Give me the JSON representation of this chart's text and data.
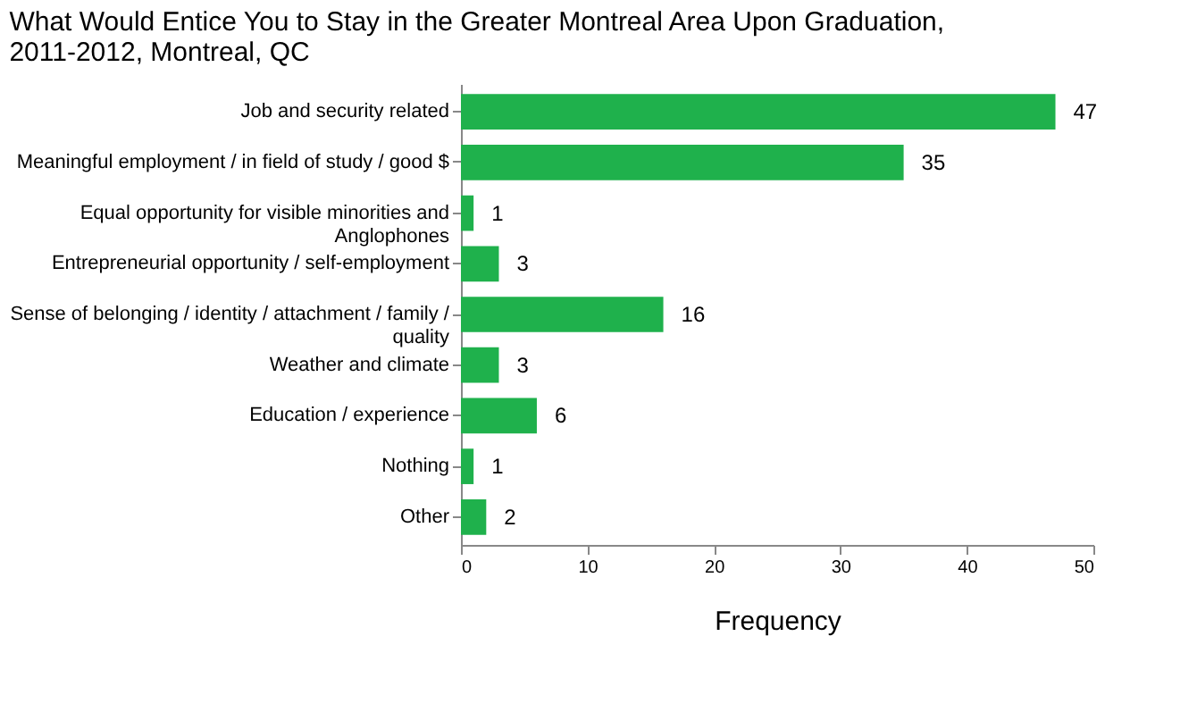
{
  "chart_data": {
    "type": "bar",
    "orientation": "horizontal",
    "title": "What Would Entice You to Stay in the Greater Montreal Area Upon Graduation,\n2011-2012, Montreal, QC",
    "xlabel": "Frequency",
    "categories": [
      "Job and security related",
      "Meaningful employment / in field of study / good $",
      "Equal opportunity for visible minorities and\nAnglophones",
      "Entrepreneurial opportunity / self-employment",
      "Sense of belonging / identity / attachment / family /\nquality",
      "Weather and climate",
      "Education / experience",
      "Nothing",
      "Other"
    ],
    "values": [
      47,
      35,
      1,
      3,
      16,
      3,
      6,
      1,
      2
    ],
    "color": "#1fb14c",
    "xlim": [
      0,
      50
    ],
    "xticks": [
      0,
      10,
      20,
      30,
      40,
      50
    ],
    "data_labels": true,
    "grid": false
  }
}
